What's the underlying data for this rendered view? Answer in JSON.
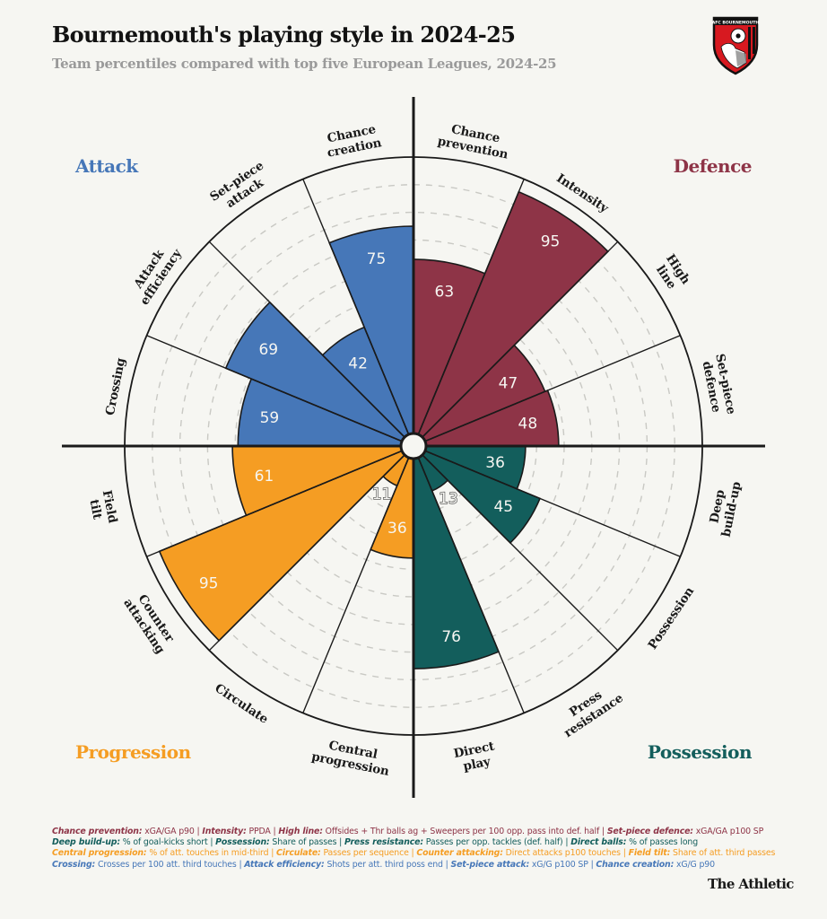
{
  "header": {
    "title": "Bournemouth's playing style in 2024-25",
    "subtitle": "Team percentiles compared with top five European Leagues, 2024-25",
    "crest_text": "AFC BOURNEMOUTH"
  },
  "colors": {
    "background": "#f6f6f2",
    "attack": "#4677b8",
    "defence": "#8e3447",
    "progression": "#f59d23",
    "possession": "#135e5c",
    "axis": "#1a1a1a",
    "grid": "#c9c9c4"
  },
  "chart_data": {
    "type": "polar-bar",
    "title": "Bournemouth's playing style in 2024-25",
    "subtitle": "Team percentiles compared with top five European Leagues, 2024-25",
    "rlim": [
      0,
      100
    ],
    "grid_rings": [
      10,
      20,
      30,
      40,
      50,
      60,
      70,
      80,
      90
    ],
    "groups": [
      {
        "name": "Attack",
        "color_key": "attack",
        "position": "top-left"
      },
      {
        "name": "Defence",
        "color_key": "defence",
        "position": "top-right"
      },
      {
        "name": "Progression",
        "color_key": "progression",
        "position": "bottom-left"
      },
      {
        "name": "Possession",
        "color_key": "possession",
        "position": "bottom-right"
      }
    ],
    "metrics": [
      {
        "name": "Chance prevention",
        "lines": [
          "Chance",
          "prevention"
        ],
        "group": "Defence",
        "value": 63
      },
      {
        "name": "Intensity",
        "lines": [
          "Intensity"
        ],
        "group": "Defence",
        "value": 95
      },
      {
        "name": "High line",
        "lines": [
          "High",
          "line"
        ],
        "group": "Defence",
        "value": 47
      },
      {
        "name": "Set-piece defence",
        "lines": [
          "Set-piece",
          "defence"
        ],
        "group": "Defence",
        "value": 48
      },
      {
        "name": "Deep build-up",
        "lines": [
          "Deep",
          "build-up"
        ],
        "group": "Possession",
        "value": 36
      },
      {
        "name": "Possession",
        "lines": [
          "Possession"
        ],
        "group": "Possession",
        "value": 45
      },
      {
        "name": "Press resistance",
        "lines": [
          "Press",
          "resistance"
        ],
        "group": "Possession",
        "value": 13
      },
      {
        "name": "Direct play",
        "lines": [
          "Direct",
          "play"
        ],
        "group": "Possession",
        "value": 76
      },
      {
        "name": "Central progression",
        "lines": [
          "Central",
          "progression"
        ],
        "group": "Progression",
        "value": 36
      },
      {
        "name": "Circulate",
        "lines": [
          "Circulate"
        ],
        "group": "Progression",
        "value": 11
      },
      {
        "name": "Counter attacking",
        "lines": [
          "Counter",
          "attacking"
        ],
        "group": "Progression",
        "value": 95
      },
      {
        "name": "Field tilt",
        "lines": [
          "Field",
          "tilt"
        ],
        "group": "Progression",
        "value": 61
      },
      {
        "name": "Crossing",
        "lines": [
          "Crossing"
        ],
        "group": "Attack",
        "value": 59
      },
      {
        "name": "Attack efficiency",
        "lines": [
          "Attack",
          "efficiency"
        ],
        "group": "Attack",
        "value": 69
      },
      {
        "name": "Set-piece attack",
        "lines": [
          "Set-piece",
          "attack"
        ],
        "group": "Attack",
        "value": 42
      },
      {
        "name": "Chance creation",
        "lines": [
          "Chance",
          "creation"
        ],
        "group": "Attack",
        "value": 75
      }
    ]
  },
  "notes": [
    {
      "color_key": "defence",
      "items": [
        {
          "term": "Chance prevention:",
          "desc": "xGA/GA p90"
        },
        {
          "term": "Intensity:",
          "desc": "PPDA"
        },
        {
          "term": "High line:",
          "desc": "Offsides + Thr balls ag + Sweepers per 100 opp. pass into def. half"
        },
        {
          "term": "Set-piece defence:",
          "desc": "xGA/GA p100 SP"
        }
      ]
    },
    {
      "color_key": "possession",
      "items": [
        {
          "term": "Deep build-up:",
          "desc": "% of goal-kicks short"
        },
        {
          "term": "Possession:",
          "desc": "Share of passes"
        },
        {
          "term": "Press resistance:",
          "desc": "Passes per opp. tackles (def. half)"
        },
        {
          "term": "Direct balls:",
          "desc": "% of passes long"
        }
      ]
    },
    {
      "color_key": "progression",
      "items": [
        {
          "term": "Central progression:",
          "desc": "% of att. touches in mid-third"
        },
        {
          "term": "Circulate:",
          "desc": "Passes per sequence"
        },
        {
          "term": "Counter attacking:",
          "desc": "Direct attacks p100 touches"
        },
        {
          "term": "Field tilt:",
          "desc": "Share of att. third passes"
        }
      ]
    },
    {
      "color_key": "attack",
      "items": [
        {
          "term": "Crossing:",
          "desc": "Crosses per 100 att. third touches"
        },
        {
          "term": "Attack efficiency:",
          "desc": "Shots per att. third poss end"
        },
        {
          "term": "Set-piece attack:",
          "desc": "xG/G p100 SP"
        },
        {
          "term": "Chance creation:",
          "desc": "xG/G p90"
        }
      ]
    }
  ],
  "footer": {
    "brand": "The Athletic"
  }
}
